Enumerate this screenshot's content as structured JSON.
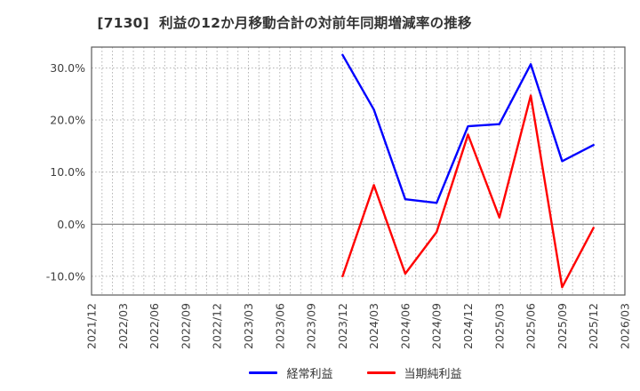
{
  "chart_data": {
    "type": "line",
    "title": "[7130]  利益の12か月移動合計の対前年同期増減率の推移",
    "x_axis": {
      "tick_labels": [
        "2021/12",
        "2022/03",
        "2022/06",
        "2022/09",
        "2022/12",
        "2023/03",
        "2023/06",
        "2023/09",
        "2023/12",
        "2024/03",
        "2024/06",
        "2024/09",
        "2024/12",
        "2025/03",
        "2025/06",
        "2025/09",
        "2025/12",
        "2026/03"
      ],
      "tick_month_step": 3,
      "months_total": 51,
      "minor_grid": "monthly"
    },
    "y_axis": {
      "tick_values": [
        30,
        20,
        10,
        0,
        -10
      ],
      "tick_labels": [
        "30.0%",
        "20.0%",
        "10.0%",
        "0.0%",
        "-10.0%"
      ],
      "min": -13.6,
      "max": 34.0,
      "unit": "%"
    },
    "data_x_labels": [
      "2023/12",
      "2024/03",
      "2024/06",
      "2024/09",
      "2024/12",
      "2025/03",
      "2025/06",
      "2025/09",
      "2025/12"
    ],
    "series": [
      {
        "name": "経常利益",
        "color": "#0000ff",
        "start_month_index": 24,
        "month_step": 3,
        "values": [
          32.5,
          22.0,
          4.8,
          4.1,
          18.8,
          19.2,
          30.7,
          12.1,
          15.2
        ]
      },
      {
        "name": "当期純利益",
        "color": "#ff0000",
        "start_month_index": 24,
        "month_step": 3,
        "values": [
          -10.0,
          7.5,
          -9.5,
          -1.5,
          17.2,
          1.3,
          24.7,
          -12.1,
          -0.7
        ]
      }
    ],
    "colors": {
      "grid": "#b3b3b3",
      "zero_line": "#7a7a7a",
      "plot_border": "#595959",
      "tick_text": "#404040",
      "title_text": "#333333",
      "background": "#ffffff"
    },
    "legend_position": "bottom-center",
    "grid": "on"
  }
}
